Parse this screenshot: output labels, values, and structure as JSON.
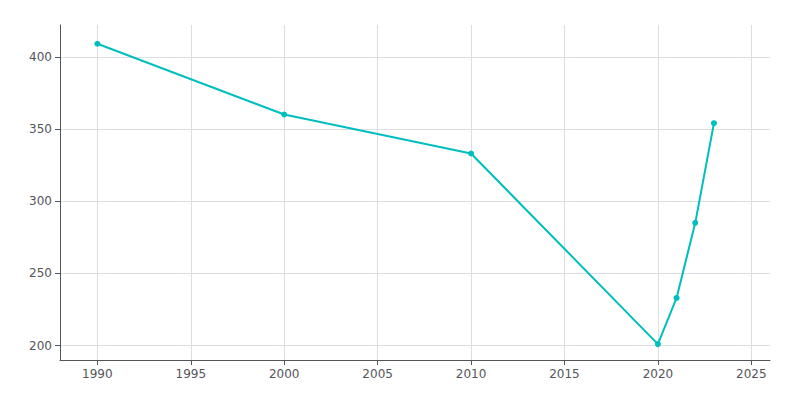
{
  "chart_data": {
    "type": "line",
    "x": [
      1990,
      2000,
      2010,
      2020,
      2021,
      2022,
      2023
    ],
    "values": [
      409,
      360,
      333,
      201,
      233,
      285,
      354
    ],
    "color": "#00BEBE",
    "marker": "circle",
    "xlim": [
      1988,
      2026
    ],
    "ylim": [
      190,
      422
    ],
    "xticks": [
      1990,
      1995,
      2000,
      2005,
      2010,
      2015,
      2020,
      2025
    ],
    "yticks": [
      200,
      250,
      300,
      350,
      400
    ],
    "grid": true
  }
}
